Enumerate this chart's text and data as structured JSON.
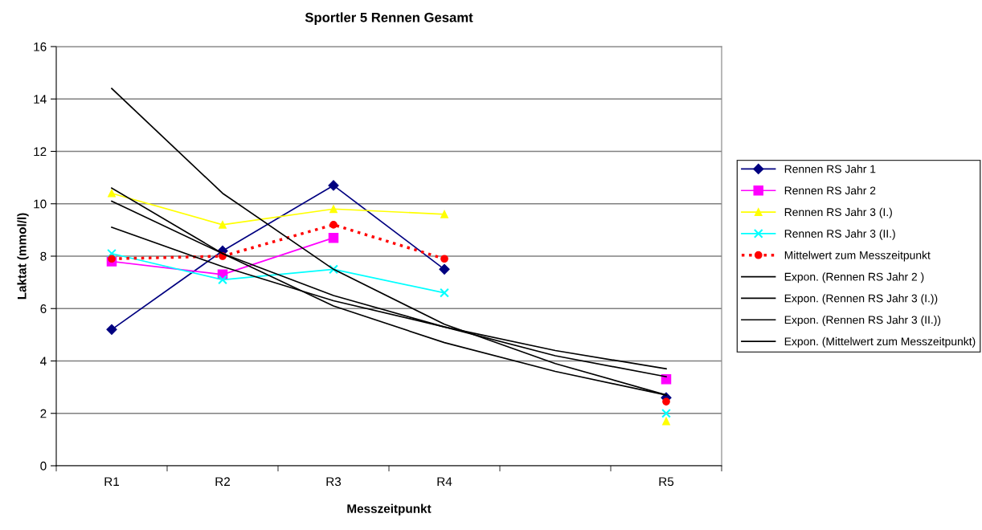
{
  "chart_data": {
    "type": "line",
    "title": "Sportler 5 Rennen Gesamt",
    "xlabel": "Messzeitpunkt",
    "ylabel": "Laktat (mmol/l)",
    "categories": [
      "R1",
      "R2",
      "R3",
      "R4",
      null,
      "R5"
    ],
    "series": [
      {
        "name": "Rennen RS Jahr 1",
        "color": "#000080",
        "marker": "diamond",
        "line_style": "solid",
        "values": [
          5.2,
          8.2,
          10.7,
          7.5,
          null,
          2.6
        ]
      },
      {
        "name": "Rennen RS Jahr 2",
        "color": "#ff00ff",
        "marker": "square",
        "line_style": "solid",
        "values": [
          7.8,
          7.3,
          8.7,
          null,
          null,
          3.3
        ]
      },
      {
        "name": "Rennen RS Jahr 3 (I.)",
        "color": "#ffff00",
        "marker": "triangle",
        "line_style": "solid",
        "values": [
          10.4,
          9.2,
          9.8,
          9.6,
          null,
          1.7
        ]
      },
      {
        "name": "Rennen RS Jahr 3 (II.)",
        "color": "#00ffff",
        "marker": "cross",
        "line_style": "solid",
        "values": [
          8.1,
          7.1,
          7.5,
          6.6,
          null,
          2.0
        ]
      },
      {
        "name": "Mittelwert zum Messzeitpunkt",
        "color": "#ff0000",
        "marker": "circle",
        "line_style": "dotted",
        "values": [
          7.9,
          8.0,
          9.2,
          7.9,
          null,
          2.45
        ]
      },
      {
        "name": "Expon. (Rennen RS Jahr 2 )",
        "color": "#000000",
        "marker": "none",
        "line_style": "solid",
        "values": [
          9.1,
          7.6,
          6.3,
          5.3,
          4.4,
          3.7
        ]
      },
      {
        "name": "Expon. (Rennen RS Jahr 3 (I.))",
        "color": "#000000",
        "marker": "none",
        "line_style": "solid",
        "values": [
          14.4,
          10.4,
          7.5,
          5.4,
          3.9,
          2.7
        ]
      },
      {
        "name": "Expon. (Rennen RS Jahr 3 (II.))",
        "color": "#000000",
        "marker": "none",
        "line_style": "solid",
        "values": [
          10.6,
          8.1,
          6.1,
          4.7,
          3.6,
          2.7
        ]
      },
      {
        "name": "Expon. (Mittelwert zum Messzeitpunkt)",
        "color": "#000000",
        "marker": "none",
        "line_style": "solid",
        "values": [
          10.1,
          8.1,
          6.5,
          5.3,
          4.2,
          3.4
        ]
      }
    ],
    "ylim": [
      0,
      16
    ],
    "yticks": [
      0,
      2,
      4,
      6,
      8,
      10,
      12,
      14,
      16
    ],
    "grid": "y",
    "legend": "right"
  }
}
